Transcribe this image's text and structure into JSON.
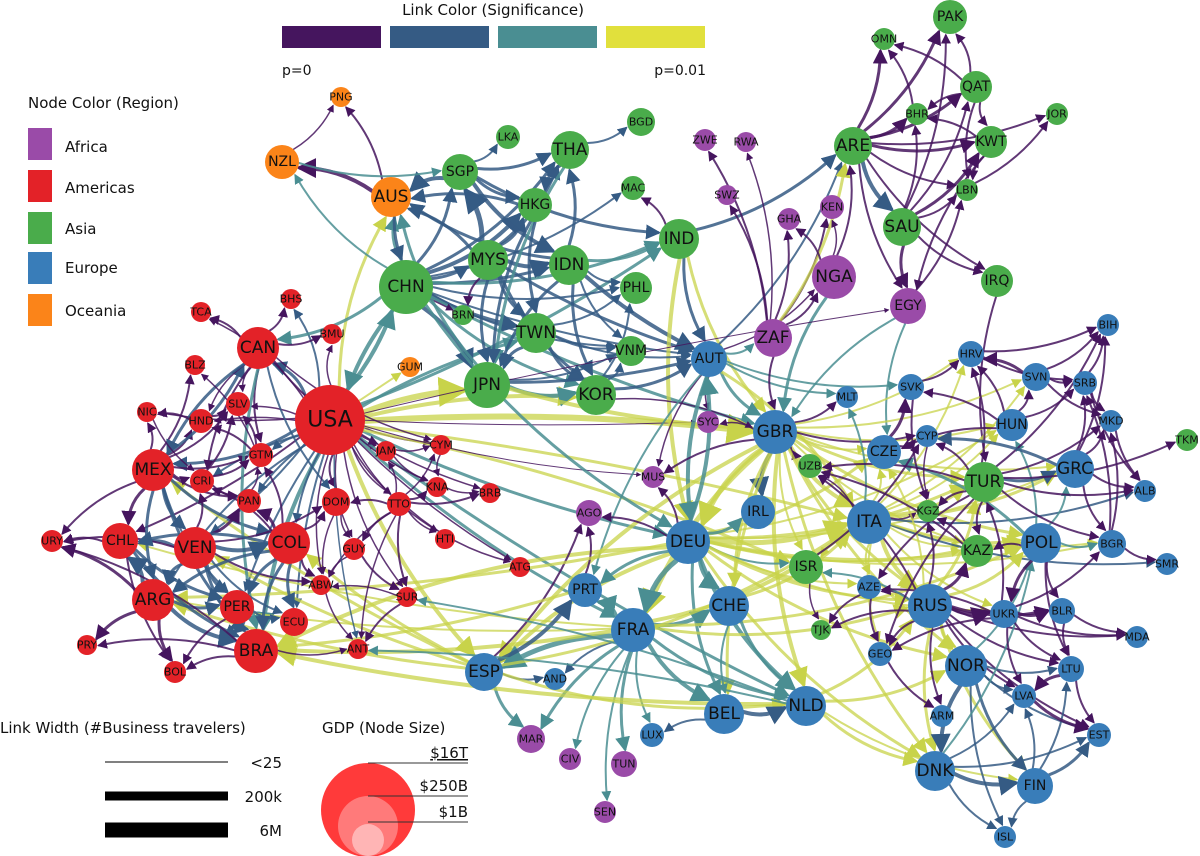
{
  "significance_legend": {
    "title": "Link Color (Significance)",
    "low_label": "p=0",
    "high_label": "p=0.01",
    "colors": [
      "#45155e",
      "#355b84",
      "#4a8e92",
      "#e1e03c"
    ]
  },
  "region_legend": {
    "title": "Node Color (Region)",
    "items": [
      {
        "label": "Africa",
        "color": "#9a4ba8"
      },
      {
        "label": "Americas",
        "color": "#e32228"
      },
      {
        "label": "Asia",
        "color": "#4aac4b"
      },
      {
        "label": "Europe",
        "color": "#397db9"
      },
      {
        "label": "Oceania",
        "color": "#fb8419"
      }
    ]
  },
  "width_legend": {
    "title": "Link Width (#Business travelers)",
    "items": [
      "<25",
      "200k",
      "6M"
    ]
  },
  "size_legend": {
    "title": "GDP (Node Size)",
    "items": [
      "$16T",
      "$250B",
      "$1B"
    ]
  },
  "nodes": [
    {
      "id": "USA",
      "r": 0
    },
    {
      "id": "CHN",
      "r": 0
    },
    {
      "id": "JPN",
      "r": 0
    },
    {
      "id": "DEU",
      "r": 0
    },
    {
      "id": "FRA",
      "r": 0
    },
    {
      "id": "GBR",
      "r": 0
    },
    {
      "id": "BRA",
      "r": 0
    },
    {
      "id": "ITA",
      "r": 0
    },
    {
      "id": "RUS",
      "r": 0
    },
    {
      "id": "IND",
      "r": 0
    },
    {
      "id": "CAN",
      "r": 0
    },
    {
      "id": "AUS",
      "r": 0
    },
    {
      "id": "ESP",
      "r": 0
    },
    {
      "id": "MEX",
      "r": 0
    },
    {
      "id": "KOR",
      "r": 0
    },
    {
      "id": "IDN",
      "r": 0
    },
    {
      "id": "TUR",
      "r": 0
    },
    {
      "id": "NLD",
      "r": 0
    },
    {
      "id": "CHE",
      "r": 0
    },
    {
      "id": "SAU",
      "r": 0
    },
    {
      "id": "POL",
      "r": 0
    },
    {
      "id": "BEL",
      "r": 0
    },
    {
      "id": "TWN",
      "r": 0
    },
    {
      "id": "ARG",
      "r": 0
    },
    {
      "id": "NOR",
      "r": 0
    },
    {
      "id": "ZAF",
      "r": 0
    },
    {
      "id": "THA",
      "r": 0
    },
    {
      "id": "VEN",
      "r": 0
    },
    {
      "id": "COL",
      "r": 0
    },
    {
      "id": "ARE",
      "r": 0
    },
    {
      "id": "NGA",
      "r": 0
    },
    {
      "id": "AUT",
      "r": 0
    },
    {
      "id": "DNK",
      "r": 0
    },
    {
      "id": "MYS",
      "r": 0
    },
    {
      "id": "SGP",
      "r": 0
    },
    {
      "id": "HKG",
      "r": 0
    },
    {
      "id": "PHL",
      "r": 0
    },
    {
      "id": "EGY",
      "r": 0
    },
    {
      "id": "FIN",
      "r": 0
    },
    {
      "id": "GRC",
      "r": 0
    },
    {
      "id": "CHL",
      "r": 0
    },
    {
      "id": "PER",
      "r": 0
    },
    {
      "id": "ISR",
      "r": 0
    },
    {
      "id": "IRL",
      "r": 0
    },
    {
      "id": "PRT",
      "r": 0
    },
    {
      "id": "NZL",
      "r": 0
    },
    {
      "id": "KAZ",
      "r": 0
    },
    {
      "id": "UKR",
      "r": 0
    },
    {
      "id": "HUN",
      "r": 0
    },
    {
      "id": "CZE",
      "r": 0
    },
    {
      "id": "BGD",
      "r": 0
    },
    {
      "id": "PAK",
      "r": 0
    },
    {
      "id": "QAT",
      "r": 0
    },
    {
      "id": "KWT",
      "r": 0
    },
    {
      "id": "IRQ",
      "r": 0
    },
    {
      "id": "ECU",
      "r": 0
    },
    {
      "id": "DOM",
      "r": 0
    },
    {
      "id": "TTO",
      "r": 0
    },
    {
      "id": "CRI",
      "r": 0
    },
    {
      "id": "PAN",
      "r": 0
    },
    {
      "id": "GTM",
      "r": 0
    },
    {
      "id": "SLV",
      "r": 0
    },
    {
      "id": "HND",
      "r": 0
    },
    {
      "id": "URY",
      "r": 0
    },
    {
      "id": "BOL",
      "r": 0
    },
    {
      "id": "PRY",
      "r": 0
    },
    {
      "id": "NIC",
      "r": 0
    },
    {
      "id": "BLZ",
      "r": 0
    },
    {
      "id": "TCA",
      "r": 0
    },
    {
      "id": "BHS",
      "r": 0
    },
    {
      "id": "BMU",
      "r": 0
    },
    {
      "id": "JAM",
      "r": 0
    },
    {
      "id": "CYM",
      "r": 0
    },
    {
      "id": "KNA",
      "r": 0
    },
    {
      "id": "BRB",
      "r": 0
    },
    {
      "id": "HTI",
      "r": 0
    },
    {
      "id": "ATG",
      "r": 0
    },
    {
      "id": "GUY",
      "r": 0
    },
    {
      "id": "SUR",
      "r": 0
    },
    {
      "id": "ABW",
      "r": 0
    },
    {
      "id": "ANT",
      "r": 0
    },
    {
      "id": "GUM",
      "r": 0
    },
    {
      "id": "PNG",
      "r": 0
    },
    {
      "id": "VNM",
      "r": 0
    },
    {
      "id": "LKA",
      "r": 0
    },
    {
      "id": "MAC",
      "r": 0
    },
    {
      "id": "BRN",
      "r": 0
    },
    {
      "id": "ZWE",
      "r": 0
    },
    {
      "id": "RWA",
      "r": 0
    },
    {
      "id": "SWZ",
      "r": 0
    },
    {
      "id": "GHA",
      "r": 0
    },
    {
      "id": "KEN",
      "r": 0
    },
    {
      "id": "SYC",
      "r": 0
    },
    {
      "id": "MUS",
      "r": 0
    },
    {
      "id": "AGO",
      "r": 0
    },
    {
      "id": "MAR",
      "r": 0
    },
    {
      "id": "CIV",
      "r": 0
    },
    {
      "id": "TUN",
      "r": 0
    },
    {
      "id": "SEN",
      "r": 0
    },
    {
      "id": "OMN",
      "r": 0
    },
    {
      "id": "BHR",
      "r": 0
    },
    {
      "id": "JOR",
      "r": 0
    },
    {
      "id": "LBN",
      "r": 0
    },
    {
      "id": "MLT",
      "r": 0
    },
    {
      "id": "SVK",
      "r": 0
    },
    {
      "id": "CYP",
      "r": 0
    },
    {
      "id": "HRV",
      "r": 0
    },
    {
      "id": "SVN",
      "r": 0
    },
    {
      "id": "SRB",
      "r": 0
    },
    {
      "id": "BIH",
      "r": 0
    },
    {
      "id": "MKD",
      "r": 0
    },
    {
      "id": "TKM",
      "r": 0
    },
    {
      "id": "ALB",
      "r": 0
    },
    {
      "id": "BGR",
      "r": 0
    },
    {
      "id": "SMR",
      "r": 0
    },
    {
      "id": "KGZ",
      "r": 0
    },
    {
      "id": "UZB",
      "r": 0
    },
    {
      "id": "AZE",
      "r": 0
    },
    {
      "id": "GEO",
      "r": 0
    },
    {
      "id": "ARM",
      "r": 0
    },
    {
      "id": "TJK",
      "r": 0
    },
    {
      "id": "BLR",
      "r": 0
    },
    {
      "id": "MDA",
      "r": 0
    },
    {
      "id": "LTU",
      "r": 0
    },
    {
      "id": "LVA",
      "r": 0
    },
    {
      "id": "EST",
      "r": 0
    },
    {
      "id": "ISL",
      "r": 0
    },
    {
      "id": "AND",
      "r": 0
    },
    {
      "id": "LUX",
      "r": 0
    }
  ]
}
